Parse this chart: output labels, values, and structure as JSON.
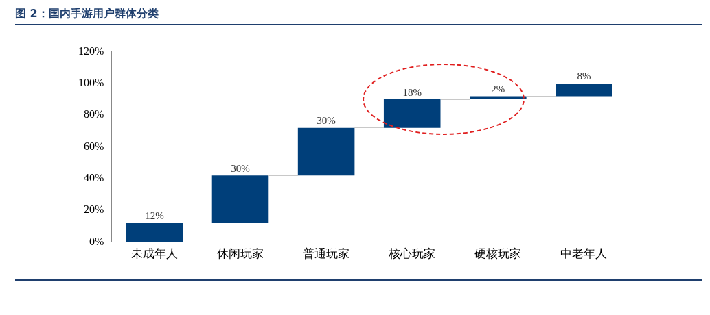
{
  "chart_data": {
    "type": "bar",
    "title": "图 2：国内手游用户群体分类",
    "categories": [
      "未成年人",
      "休闲玩家",
      "普通玩家",
      "核心玩家",
      "硬核玩家",
      "中老年人"
    ],
    "values": [
      12,
      30,
      30,
      18,
      2,
      8
    ],
    "base": [
      0,
      12,
      42,
      72,
      90,
      92
    ],
    "value_labels": [
      "12%",
      "30%",
      "30%",
      "18%",
      "2%",
      "8%"
    ],
    "color": "#003f7a",
    "ylim": [
      0,
      120
    ],
    "yticks": [
      {
        "value": 0,
        "label": "0%"
      },
      {
        "value": 20,
        "label": "20%"
      },
      {
        "value": 40,
        "label": "40%"
      },
      {
        "value": 60,
        "label": "60%"
      },
      {
        "value": 80,
        "label": "80%"
      },
      {
        "value": 100,
        "label": "100%"
      },
      {
        "value": 120,
        "label": "120%"
      }
    ]
  }
}
